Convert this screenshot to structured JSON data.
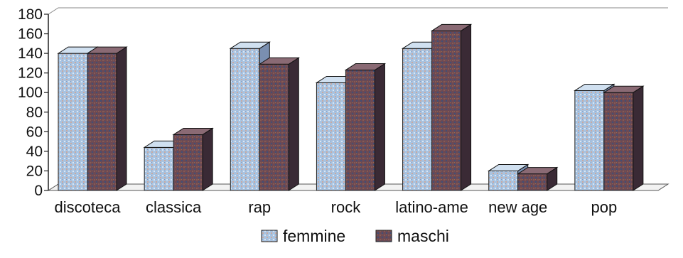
{
  "chart_data": {
    "type": "bar",
    "style": "3d-clustered-column",
    "categories": [
      "discoteca",
      "classica",
      "rap",
      "rock",
      "latino-ame",
      "new age",
      "pop"
    ],
    "series": [
      {
        "name": "femmine",
        "values": [
          140,
          44,
          145,
          110,
          145,
          20,
          102
        ],
        "color": "#a9c3e0",
        "pattern": "light-dotted"
      },
      {
        "name": "maschi",
        "values": [
          140,
          57,
          129,
          123,
          163,
          17,
          100
        ],
        "color": "#6b4a55",
        "pattern": "dark-crosshatch"
      }
    ],
    "ylim": [
      0,
      180
    ],
    "yticks": [
      0,
      20,
      40,
      60,
      80,
      100,
      120,
      140,
      160,
      180
    ],
    "title": "",
    "xlabel": "",
    "ylabel": "",
    "grid": false,
    "legend_position": "bottom-center"
  }
}
